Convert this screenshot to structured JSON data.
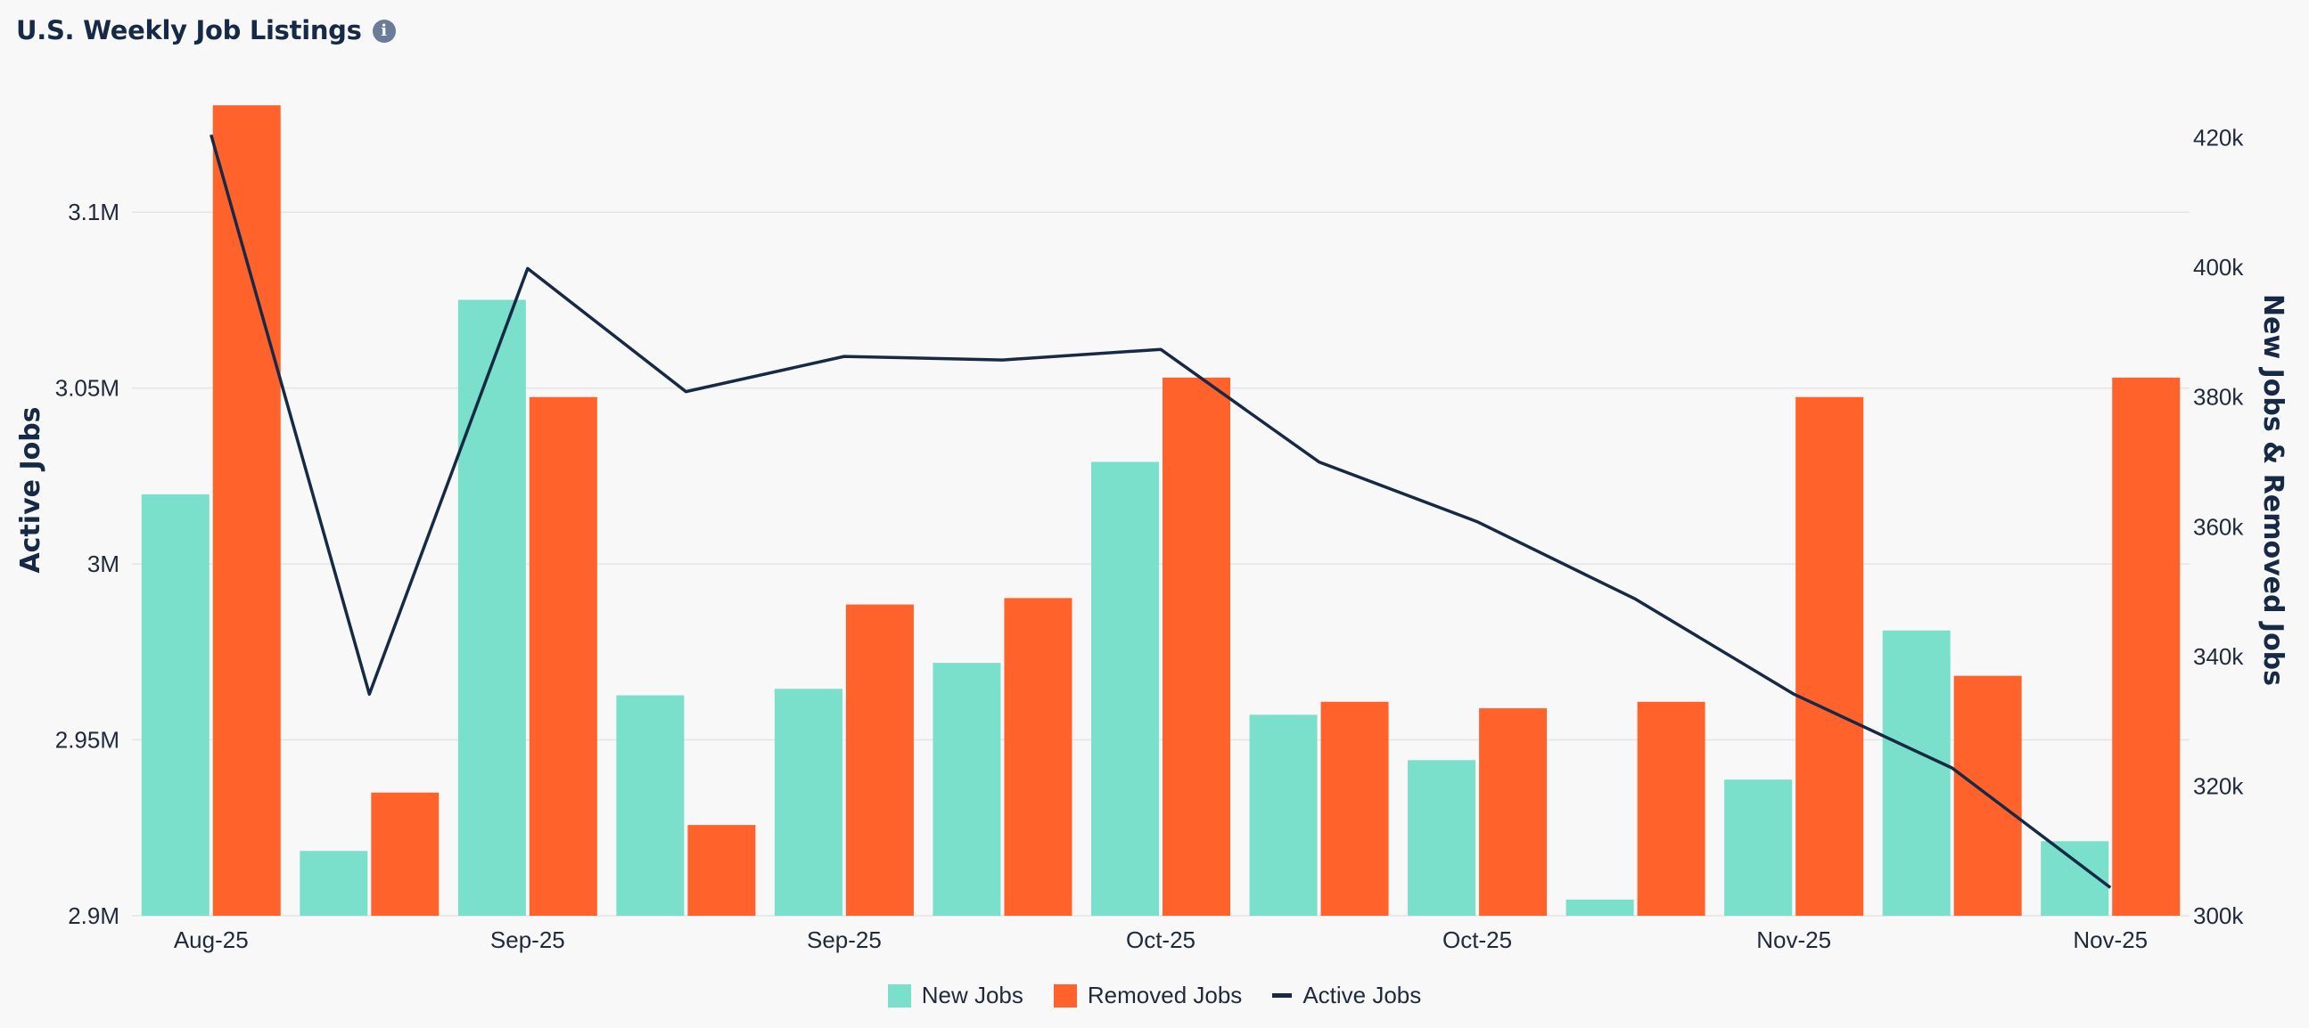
{
  "header": {
    "title": "U.S. Weekly Job Listings",
    "info_icon": "info-icon"
  },
  "colors": {
    "new_jobs": "#7adfcb",
    "removed_jobs": "#ff632b",
    "active_jobs": "#172a45",
    "grid": "#e4e4e4"
  },
  "chart_data": {
    "type": "bar",
    "title": "U.S. Weekly Job Listings",
    "categories": [
      "Aug-25",
      "Aug-25",
      "Sep-25",
      "Sep-25",
      "Sep-25",
      "Sep-25",
      "Oct-25",
      "Oct-25",
      "Oct-25",
      "Oct-25",
      "Nov-25",
      "Nov-25",
      "Nov-25"
    ],
    "x_tick_labels": [
      "Aug-25",
      "Sep-25",
      "Sep-25",
      "Oct-25",
      "Oct-25",
      "Nov-25",
      "Nov-25"
    ],
    "x_tick_indices": [
      0,
      2,
      4,
      6,
      8,
      10,
      12
    ],
    "series": [
      {
        "name": "New Jobs",
        "type": "bar",
        "axis": "right",
        "values": [
          365000,
          310000,
          395000,
          334000,
          335000,
          339000,
          370000,
          331000,
          324000,
          302500,
          321000,
          344000,
          311500
        ]
      },
      {
        "name": "Removed Jobs",
        "type": "bar",
        "axis": "right",
        "values": [
          425000,
          319000,
          380000,
          314000,
          348000,
          349000,
          383000,
          333000,
          332000,
          333000,
          380000,
          337000,
          383000
        ]
      },
      {
        "name": "Active Jobs",
        "type": "line",
        "axis": "left",
        "values": [
          3122000,
          2963000,
          3084000,
          3049000,
          3059000,
          3058000,
          3061000,
          3029000,
          3012000,
          2990000,
          2963000,
          2942000,
          2908000
        ]
      }
    ],
    "left_axis": {
      "label": "Active Jobs",
      "range": [
        2900000,
        3135000
      ],
      "ticks": [
        2900000,
        2950000,
        3000000,
        3050000,
        3100000
      ],
      "tick_labels": [
        "2.9M",
        "2.95M",
        "3M",
        "3.05M",
        "3.1M"
      ]
    },
    "right_axis": {
      "label": "New Jobs & Removed Jobs",
      "range": [
        300000,
        427500
      ],
      "ticks": [
        300000,
        320000,
        340000,
        360000,
        380000,
        400000,
        420000
      ],
      "tick_labels": [
        "300k",
        "320k",
        "340k",
        "360k",
        "380k",
        "400k",
        "420k"
      ]
    },
    "grid": true,
    "legend_position": "bottom-center"
  },
  "legend": {
    "items": [
      {
        "label": "New Jobs"
      },
      {
        "label": "Removed Jobs"
      },
      {
        "label": "Active Jobs"
      }
    ]
  }
}
